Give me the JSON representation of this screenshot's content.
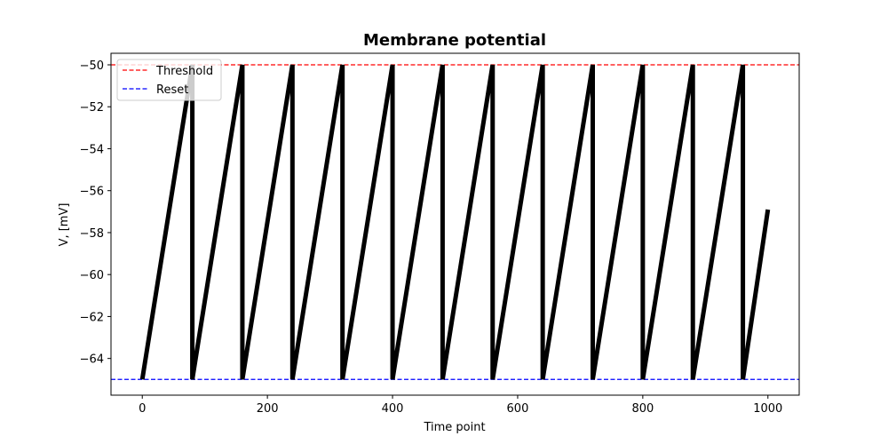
{
  "chart_data": {
    "type": "line",
    "title": "Membrane potential",
    "xlabel": "Time point",
    "ylabel": "V, [mV]",
    "xlim": [
      -50,
      1050
    ],
    "ylim": [
      -65.75,
      -49.45
    ],
    "xticks": [
      0,
      200,
      400,
      600,
      800,
      1000
    ],
    "yticks": [
      -50,
      -52,
      -54,
      -56,
      -58,
      -60,
      -62,
      -64
    ],
    "xtick_labels": [
      "0",
      "200",
      "400",
      "600",
      "800",
      "1000"
    ],
    "ytick_labels": [
      "−50",
      "−52",
      "−54",
      "−56",
      "−58",
      "−60",
      "−62",
      "−64"
    ],
    "grid": false,
    "legend": {
      "position": "top-left"
    },
    "reference_lines": [
      {
        "name": "Threshold",
        "y": -50,
        "color": "#ff0000",
        "style": "dashed"
      },
      {
        "name": "Reset",
        "y": -65,
        "color": "#0000ff",
        "style": "dashed"
      }
    ],
    "series": [
      {
        "color": "#000000",
        "x": [
          0,
          80,
          80,
          160,
          160,
          240,
          240,
          320,
          320,
          400,
          400,
          480,
          480,
          560,
          560,
          640,
          640,
          720,
          720,
          800,
          800,
          880,
          880,
          960,
          960,
          1000
        ],
        "y": [
          -65,
          -50,
          -65,
          -50,
          -65,
          -50,
          -65,
          -50,
          -65,
          -50,
          -65,
          -50,
          -65,
          -50,
          -65,
          -50,
          -65,
          -50,
          -65,
          -50,
          -65,
          -50,
          -65,
          -50,
          -65,
          -56.9
        ]
      }
    ]
  }
}
